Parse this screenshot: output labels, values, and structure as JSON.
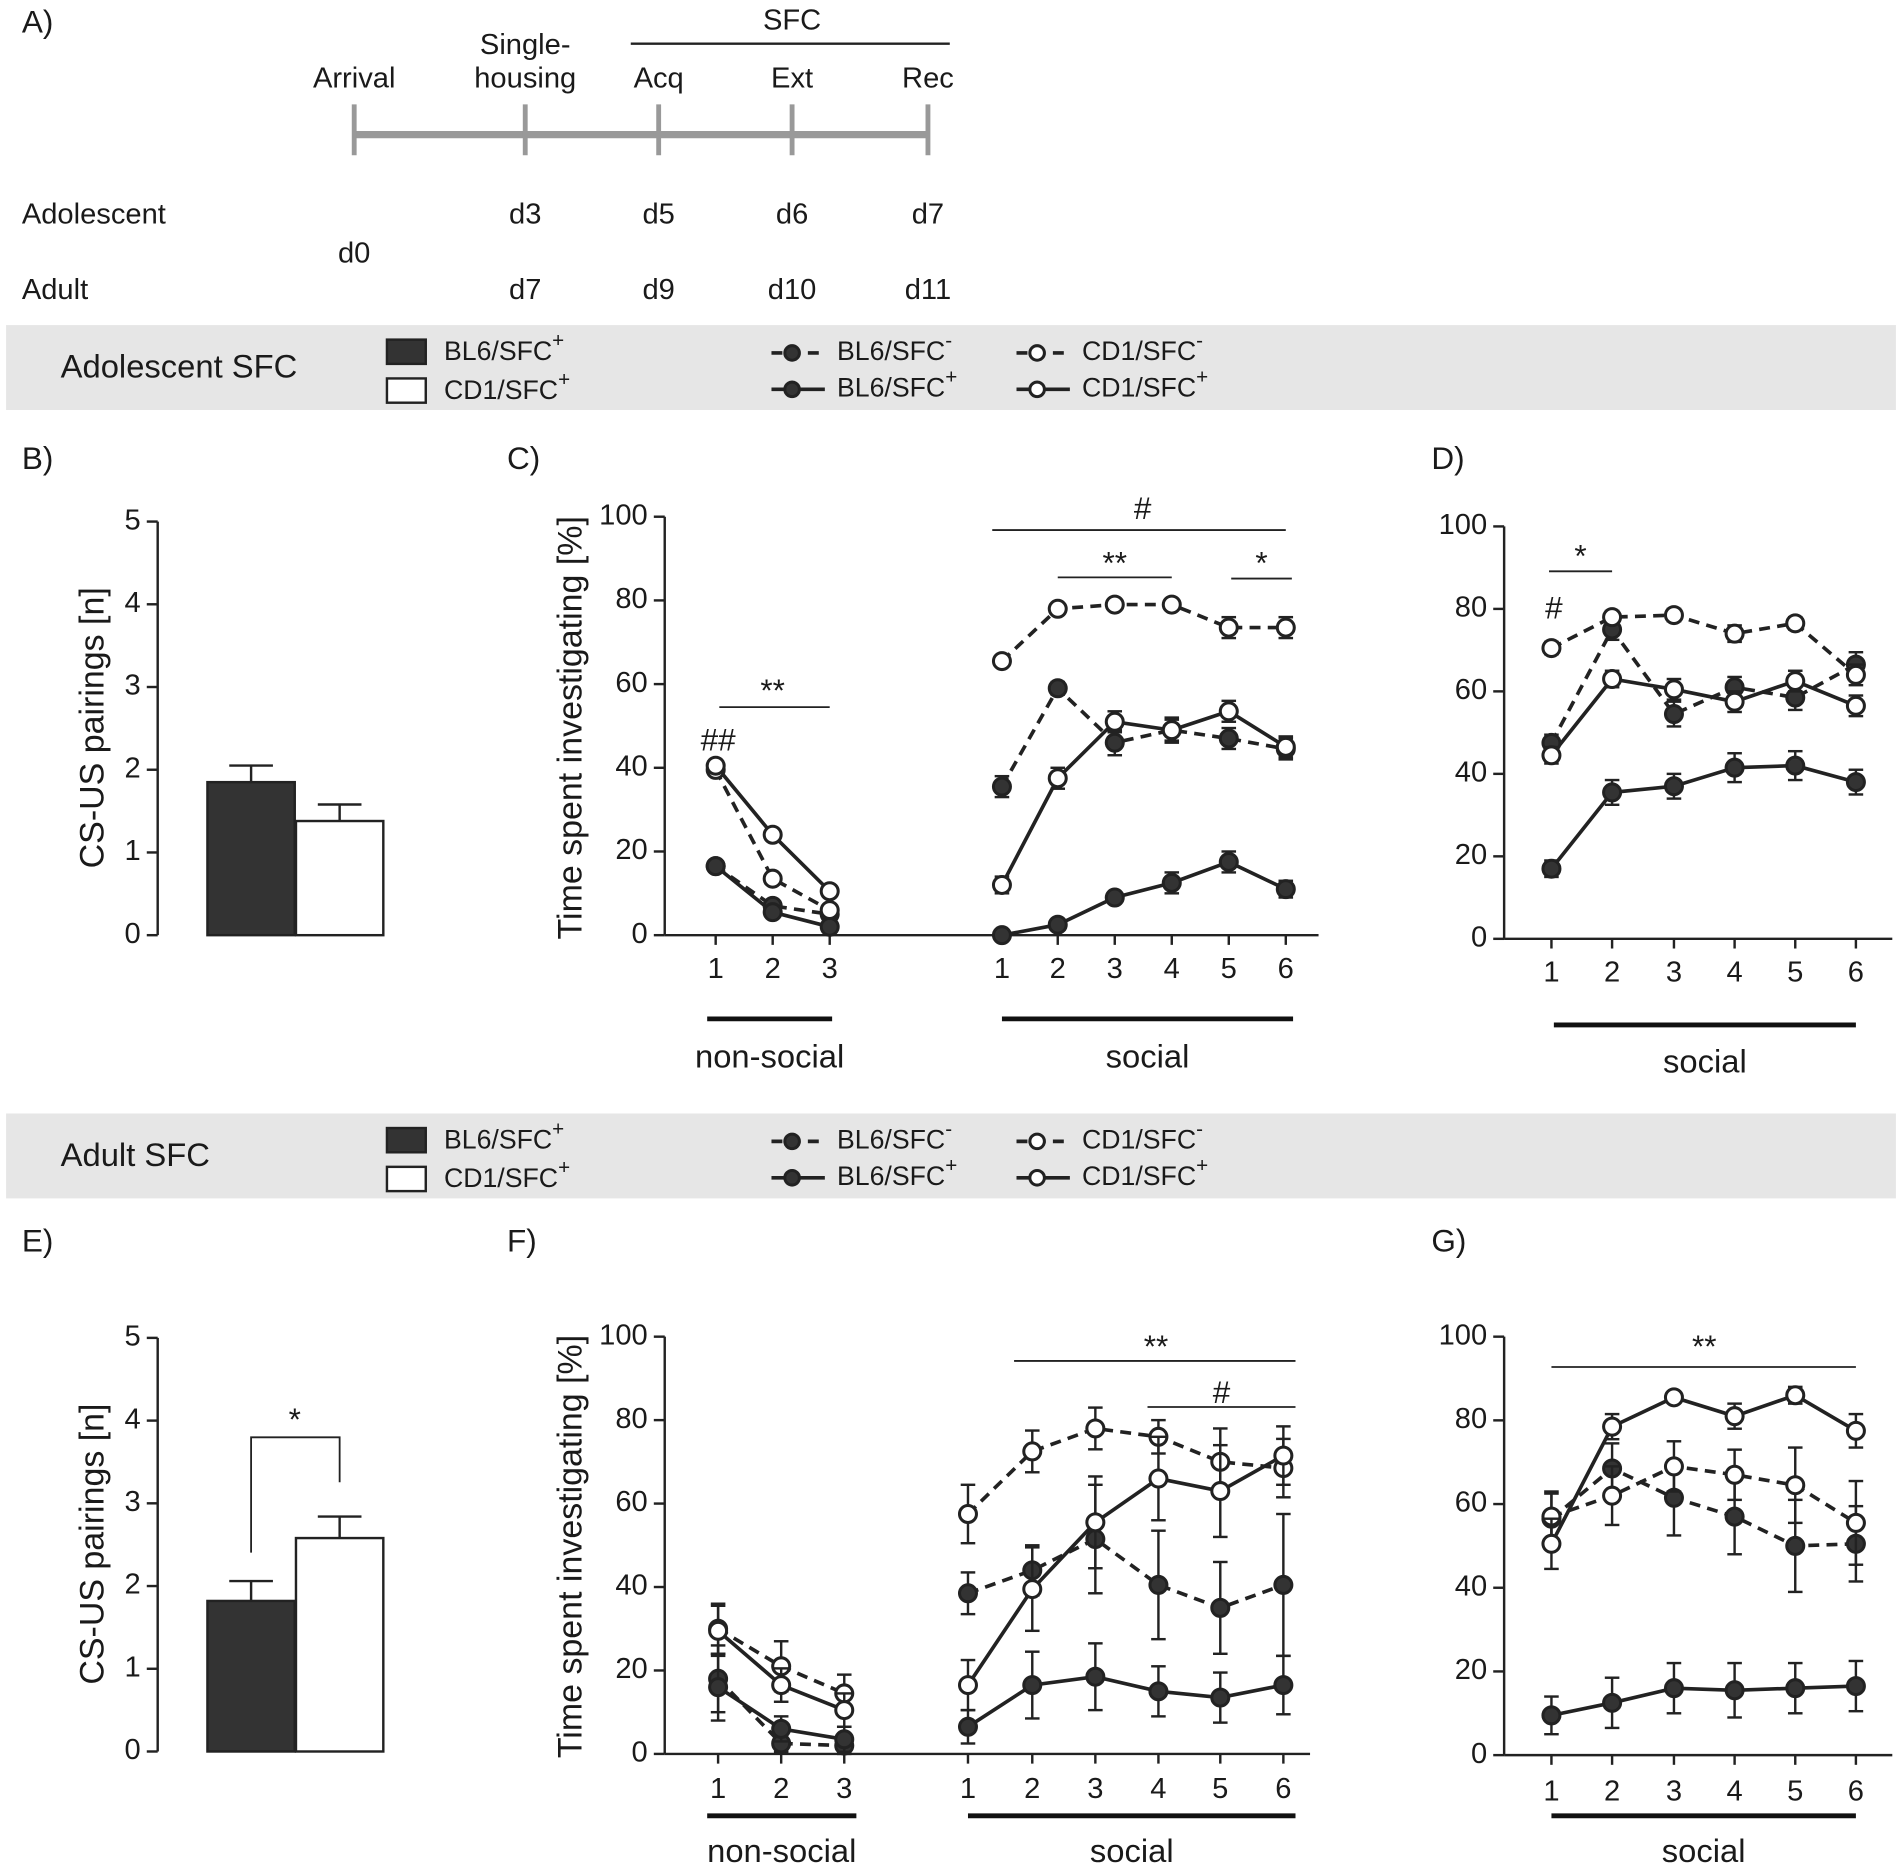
{
  "timeline": {
    "label": "A)",
    "header": "SFC",
    "groups": [
      "Adolescent",
      "Adult"
    ],
    "events": [
      {
        "label": [
          "Arrival"
        ],
        "days": [
          "d0"
        ]
      },
      {
        "label": [
          "Single-",
          "housing"
        ],
        "days": [
          "d3",
          "d7"
        ]
      },
      {
        "label": [
          "Acq"
        ],
        "days": [
          "d5",
          "d9"
        ]
      },
      {
        "label": [
          "Ext"
        ],
        "days": [
          "d6",
          "d10"
        ]
      },
      {
        "label": [
          "Rec"
        ],
        "days": [
          "d7",
          "d11"
        ]
      }
    ]
  },
  "sections": [
    {
      "title": "Adolescent SFC"
    },
    {
      "title": "Adult SFC"
    }
  ],
  "chart_data": [
    {
      "type": "bar",
      "label": "B)",
      "ylabel": "CS-US pairings [n]",
      "categories": [
        "BL6/SFC+",
        "CD1/SFC+"
      ],
      "colors": [
        "#333333",
        "#ffffff"
      ],
      "values": [
        1.85,
        1.38
      ],
      "errors": [
        0.2,
        0.2
      ],
      "ylim": [
        0,
        5
      ],
      "yticks": [
        0,
        1,
        2,
        3,
        4,
        5
      ]
    },
    {
      "type": "line",
      "label": "C)",
      "ylabel": "Time spent investigating [%]",
      "ylim": [
        0,
        100
      ],
      "yticks": [
        0,
        20,
        40,
        60,
        80,
        100
      ],
      "groups": [
        {
          "label": "non-social",
          "categories": [
            "1",
            "2",
            "3"
          ]
        },
        {
          "label": "social",
          "categories": [
            "1",
            "2",
            "3",
            "4",
            "5",
            "6"
          ]
        }
      ],
      "annotations": [
        "##",
        "**",
        "#",
        "**",
        "*"
      ],
      "series": [
        {
          "name": "BL6/SFC-",
          "line": "dashed",
          "marker": "#333333",
          "color": "#222222",
          "values": [
            [
              16.5,
              7,
              5
            ],
            [
              35.5,
              59,
              46,
              49,
              47,
              44.5
            ]
          ],
          "errors": [
            [
              1,
              1,
              1
            ],
            [
              2.5,
              1.5,
              3,
              3,
              2.5,
              2.5
            ]
          ]
        },
        {
          "name": "BL6/SFC+",
          "line": "solid",
          "marker": "#333333",
          "color": "#222222",
          "values": [
            [
              16.5,
              5.5,
              2
            ],
            [
              0,
              2.5,
              9,
              12.5,
              17.5,
              11
            ]
          ],
          "errors": [
            [
              1,
              1,
              1
            ],
            [
              1,
              1,
              1,
              2.5,
              2.5,
              2
            ]
          ]
        },
        {
          "name": "CD1/SFC-",
          "line": "dashed",
          "marker": "#ffffff",
          "color": "#222222",
          "values": [
            [
              39.5,
              13.5,
              6
            ],
            [
              65.5,
              78,
              79,
              79,
              73.5,
              73.5
            ]
          ],
          "errors": [
            [
              1,
              1,
              1
            ],
            [
              1,
              1,
              1,
              1,
              2.5,
              2.5
            ]
          ]
        },
        {
          "name": "CD1/SFC+",
          "line": "solid",
          "marker": "#ffffff",
          "color": "#222222",
          "values": [
            [
              40.5,
              24,
              10.5
            ],
            [
              12,
              37.5,
              51,
              49,
              53.5,
              45
            ]
          ],
          "errors": [
            [
              1,
              1,
              1
            ],
            [
              2,
              2.5,
              2.5,
              2.5,
              2.5,
              2.5
            ]
          ]
        }
      ]
    },
    {
      "type": "line",
      "label": "D)",
      "ylim": [
        0,
        100
      ],
      "yticks": [
        0,
        20,
        40,
        60,
        80,
        100
      ],
      "groups": [
        {
          "label": "social",
          "categories": [
            "1",
            "2",
            "3",
            "4",
            "5",
            "6"
          ]
        }
      ],
      "annotations": [
        "*",
        "#"
      ],
      "series": [
        {
          "name": "BL6/SFC-",
          "line": "dashed",
          "marker": "#333333",
          "color": "#222222",
          "values": [
            [
              47.5,
              75,
              54.5,
              61,
              58.5,
              66.5
            ]
          ],
          "errors": [
            [
              2,
              2.5,
              3,
              2.5,
              3,
              3
            ]
          ]
        },
        {
          "name": "BL6/SFC+",
          "line": "solid",
          "marker": "#333333",
          "color": "#222222",
          "values": [
            [
              17,
              35.5,
              37,
              41.5,
              42,
              38
            ]
          ],
          "errors": [
            [
              2,
              3,
              3,
              3.5,
              3.5,
              3
            ]
          ]
        },
        {
          "name": "CD1/SFC-",
          "line": "dashed",
          "marker": "#ffffff",
          "color": "#222222",
          "values": [
            [
              70.5,
              78,
              78.5,
              74,
              76.5,
              64
            ]
          ],
          "errors": [
            [
              1.5,
              1.5,
              1.5,
              2,
              1.5,
              2.5
            ]
          ]
        },
        {
          "name": "CD1/SFC+",
          "line": "solid",
          "marker": "#ffffff",
          "color": "#222222",
          "values": [
            [
              44.5,
              63,
              60.5,
              57.5,
              62.5,
              56.5
            ]
          ],
          "errors": [
            [
              2,
              2,
              2.5,
              2.5,
              2.5,
              2.5
            ]
          ]
        }
      ]
    },
    {
      "type": "bar",
      "label": "E)",
      "ylabel": "CS-US pairings [n]",
      "categories": [
        "BL6/SFC+",
        "CD1/SFC+"
      ],
      "colors": [
        "#333333",
        "#ffffff"
      ],
      "values": [
        1.82,
        2.58
      ],
      "errors": [
        0.24,
        0.26
      ],
      "ylim": [
        0,
        5
      ],
      "yticks": [
        0,
        1,
        2,
        3,
        4,
        5
      ],
      "annotations": [
        "*"
      ]
    },
    {
      "type": "line",
      "label": "F)",
      "ylabel": "Time spent investigating [%]",
      "ylim": [
        0,
        100
      ],
      "yticks": [
        0,
        20,
        40,
        60,
        80,
        100
      ],
      "groups": [
        {
          "label": "non-social",
          "categories": [
            "1",
            "2",
            "3"
          ]
        },
        {
          "label": "social",
          "categories": [
            "1",
            "2",
            "3",
            "4",
            "5",
            "6"
          ]
        }
      ],
      "annotations": [
        "**",
        "#"
      ],
      "series": [
        {
          "name": "BL6/SFC-",
          "line": "dashed",
          "marker": "#333333",
          "color": "#222222",
          "values": [
            [
              18,
              2.5,
              2
            ],
            [
              38.5,
              44,
              51.5,
              40.5,
              35,
              40.5
            ]
          ],
          "errors": [
            [
              8,
              2,
              2
            ],
            [
              5,
              6,
              13,
              13,
              11,
              17
            ]
          ]
        },
        {
          "name": "BL6/SFC+",
          "line": "solid",
          "marker": "#333333",
          "color": "#222222",
          "values": [
            [
              16,
              6,
              3.5
            ],
            [
              6.5,
              16.5,
              18.5,
              15,
              13.5,
              16.5
            ]
          ],
          "errors": [
            [
              8,
              3,
              3
            ],
            [
              4,
              8,
              8,
              6,
              6,
              7
            ]
          ]
        },
        {
          "name": "CD1/SFC-",
          "line": "dashed",
          "marker": "#ffffff",
          "color": "#222222",
          "values": [
            [
              30,
              21,
              14.5
            ],
            [
              57.5,
              72.5,
              78,
              76,
              70,
              68.5
            ]
          ],
          "errors": [
            [
              6,
              6,
              4.5
            ],
            [
              7,
              5,
              5,
              4,
              8,
              7
            ]
          ]
        },
        {
          "name": "CD1/SFC+",
          "line": "solid",
          "marker": "#ffffff",
          "color": "#222222",
          "values": [
            [
              29.5,
              16.5,
              10.5
            ],
            [
              16.5,
              39.5,
              55.5,
              66,
              63,
              71.5
            ]
          ],
          "errors": [
            [
              6,
              4,
              4
            ],
            [
              6,
              10,
              11,
              10,
              11,
              7
            ]
          ]
        }
      ]
    },
    {
      "type": "line",
      "label": "G)",
      "ylim": [
        0,
        100
      ],
      "yticks": [
        0,
        20,
        40,
        60,
        80,
        100
      ],
      "groups": [
        {
          "label": "social",
          "categories": [
            "1",
            "2",
            "3",
            "4",
            "5",
            "6"
          ]
        }
      ],
      "annotations": [
        "**"
      ],
      "series": [
        {
          "name": "BL6/SFC-",
          "line": "dashed",
          "marker": "#333333",
          "color": "#222222",
          "values": [
            [
              56.5,
              68.5,
              61.5,
              57,
              50,
              50.5
            ]
          ],
          "errors": [
            [
              6,
              6,
              9,
              9,
              11,
              9
            ]
          ]
        },
        {
          "name": "BL6/SFC+",
          "line": "solid",
          "marker": "#333333",
          "color": "#222222",
          "values": [
            [
              9.5,
              12.5,
              16,
              15.5,
              16,
              16.5
            ]
          ],
          "errors": [
            [
              4.5,
              6,
              6,
              6.5,
              6,
              6
            ]
          ]
        },
        {
          "name": "CD1/SFC-",
          "line": "dashed",
          "marker": "#ffffff",
          "color": "#222222",
          "values": [
            [
              57,
              62,
              69,
              67,
              64.5,
              55.5
            ]
          ],
          "errors": [
            [
              6,
              7,
              6,
              6,
              9,
              10
            ]
          ]
        },
        {
          "name": "CD1/SFC+",
          "line": "solid",
          "marker": "#ffffff",
          "color": "#222222",
          "values": [
            [
              50.5,
              78.5,
              85.5,
              81,
              86,
              77.5
            ]
          ],
          "errors": [
            [
              6,
              3,
              1,
              3,
              2,
              4
            ]
          ]
        }
      ]
    }
  ]
}
